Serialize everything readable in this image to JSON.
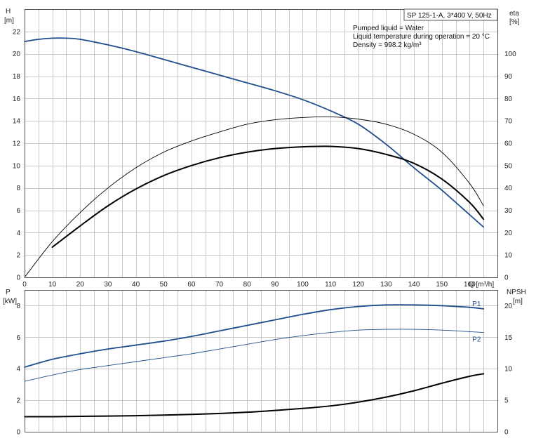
{
  "chart_data": [
    {
      "type": "line",
      "panel": "top",
      "title": "SP 125-1-A, 3*400 V, 50Hz",
      "info_lines": [
        "Pumped liquid = Water",
        "Liquid temperature during operation = 20 °C",
        "Density = 998.2 kg/m³"
      ],
      "xlabel": "Q [m³/h]",
      "ylabel_left": [
        "H",
        "[m]"
      ],
      "ylabel_right": [
        "eta",
        "[%]"
      ],
      "xlim": [
        0,
        170
      ],
      "ylim_left": [
        0,
        24
      ],
      "ylim_right": [
        0,
        120
      ],
      "x_ticks": [
        0,
        10,
        20,
        30,
        40,
        50,
        60,
        70,
        80,
        90,
        100,
        110,
        120,
        130,
        140,
        150,
        160
      ],
      "y_ticks_left": [
        0,
        2,
        4,
        6,
        8,
        10,
        12,
        14,
        16,
        18,
        20,
        22
      ],
      "y_ticks_right": [
        0,
        10,
        20,
        30,
        40,
        50,
        60,
        70,
        80,
        90,
        100
      ],
      "grid": true,
      "series": [
        {
          "axis": "left",
          "color": "#1f4e8c",
          "width": 1.8,
          "x": [
            0,
            5,
            10,
            15,
            20,
            30,
            40,
            50,
            60,
            70,
            80,
            90,
            100,
            110,
            120,
            130,
            140,
            150,
            160,
            165
          ],
          "y": [
            21.1,
            21.3,
            21.4,
            21.4,
            21.3,
            20.8,
            20.2,
            19.5,
            18.8,
            18.1,
            17.4,
            16.7,
            15.9,
            14.9,
            13.7,
            11.9,
            9.8,
            7.8,
            5.6,
            4.5
          ]
        },
        {
          "axis": "right",
          "color": "#000000",
          "width": 0.9,
          "x": [
            0,
            10,
            20,
            30,
            40,
            50,
            60,
            70,
            80,
            90,
            100,
            110,
            120,
            130,
            140,
            150,
            160,
            165
          ],
          "y": [
            0,
            16,
            29,
            40,
            49,
            56,
            61,
            65,
            68.5,
            70.5,
            71.5,
            71.8,
            70.8,
            68.5,
            64,
            56,
            42,
            32
          ]
        },
        {
          "axis": "right",
          "color": "#000000",
          "width": 2.0,
          "x": [
            10,
            20,
            30,
            40,
            50,
            60,
            70,
            80,
            90,
            100,
            110,
            120,
            130,
            140,
            150,
            160,
            165
          ],
          "y": [
            13.5,
            23,
            32,
            39.5,
            45.5,
            50,
            53.5,
            56,
            57.6,
            58.4,
            58.6,
            57.6,
            55,
            51,
            44,
            33.5,
            26
          ]
        }
      ]
    },
    {
      "type": "line",
      "panel": "bottom",
      "ylabel_left": [
        "P",
        "[kW]"
      ],
      "ylabel_right": [
        "NPSH",
        "[m]"
      ],
      "xlim": [
        0,
        170
      ],
      "ylim_left": [
        0,
        9
      ],
      "ylim_right": [
        0,
        22.5
      ],
      "y_ticks_left": [
        0,
        2,
        4,
        6,
        8
      ],
      "y_ticks_right": [
        0,
        5,
        10,
        15,
        20
      ],
      "grid": true,
      "series": [
        {
          "name": "P1",
          "axis": "left",
          "color": "#1f4e8c",
          "width": 1.8,
          "x": [
            0,
            10,
            20,
            30,
            40,
            50,
            60,
            70,
            80,
            90,
            100,
            110,
            120,
            130,
            140,
            150,
            160,
            165
          ],
          "y": [
            4.1,
            4.6,
            4.95,
            5.25,
            5.5,
            5.75,
            6.05,
            6.4,
            6.75,
            7.1,
            7.45,
            7.75,
            7.95,
            8.05,
            8.05,
            8.0,
            7.9,
            7.8
          ]
        },
        {
          "name": "P2",
          "axis": "left",
          "color": "#1f4e8c",
          "width": 0.9,
          "x": [
            0,
            10,
            20,
            30,
            40,
            50,
            60,
            70,
            80,
            90,
            100,
            110,
            120,
            130,
            140,
            150,
            160,
            165
          ],
          "y": [
            3.2,
            3.6,
            3.95,
            4.2,
            4.45,
            4.7,
            4.95,
            5.25,
            5.55,
            5.85,
            6.1,
            6.3,
            6.45,
            6.5,
            6.5,
            6.45,
            6.35,
            6.3
          ]
        },
        {
          "axis": "right",
          "color": "#000000",
          "width": 2.0,
          "x": [
            0,
            10,
            20,
            40,
            60,
            80,
            100,
            110,
            120,
            130,
            140,
            150,
            160,
            165
          ],
          "y": [
            2.4,
            2.4,
            2.45,
            2.55,
            2.75,
            3.1,
            3.7,
            4.1,
            4.7,
            5.5,
            6.5,
            7.7,
            8.8,
            9.2
          ]
        }
      ]
    }
  ]
}
